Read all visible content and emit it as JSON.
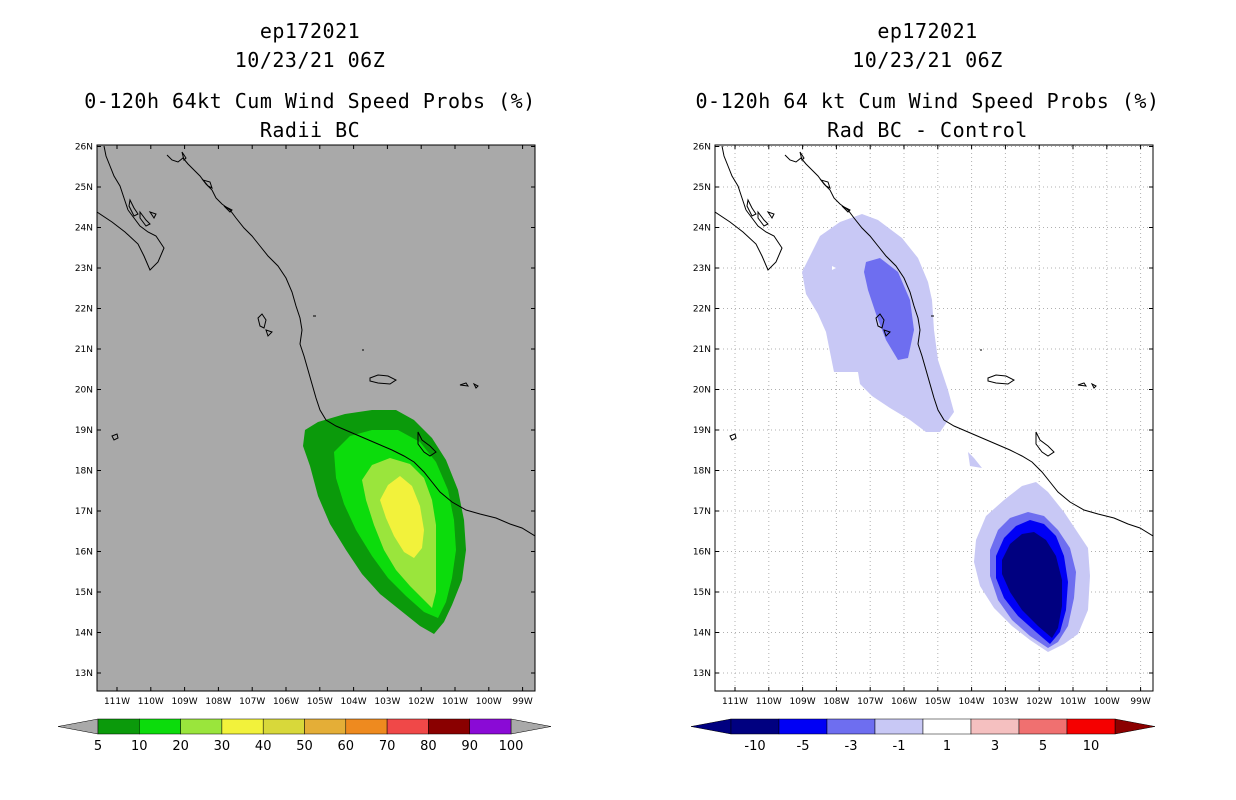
{
  "left": {
    "storm_id": "ep172021",
    "datetime": "10/23/21 06Z",
    "product": "0-120h 64kt Cum Wind Speed Probs (%)",
    "subtitle": "Radii BC",
    "background": "#a9a9a9",
    "colorbar": {
      "labels": [
        "5",
        "10",
        "20",
        "30",
        "40",
        "50",
        "60",
        "70",
        "80",
        "90",
        "100"
      ],
      "colors": [
        "#0b9a0b",
        "#0cdc0c",
        "#9ae53c",
        "#f2f23b",
        "#d8d83a",
        "#e4ae37",
        "#ee8a1f",
        "#f04848",
        "#8a0000",
        "#8a0ad6"
      ]
    }
  },
  "right": {
    "storm_id": "ep172021",
    "datetime": "10/23/21 06Z",
    "product": "0-120h 64 kt Cum Wind Speed Probs (%)",
    "subtitle": "Rad BC - Control",
    "background": "#ffffff",
    "colorbar": {
      "labels": [
        "-10",
        "-5",
        "-3",
        "-1",
        "1",
        "3",
        "5",
        "10"
      ],
      "colors": [
        "#000080",
        "#0000f5",
        "#6e6ef0",
        "#c8c8f5",
        "#ffffff",
        "#f5c0c0",
        "#f07070",
        "#f50000"
      ]
    }
  },
  "axes": {
    "lat_labels": [
      "26N",
      "25N",
      "24N",
      "23N",
      "22N",
      "21N",
      "20N",
      "19N",
      "18N",
      "17N",
      "16N",
      "15N",
      "14N",
      "13N"
    ],
    "lon_labels": [
      "111W",
      "110W",
      "109W",
      "108W",
      "107W",
      "106W",
      "105W",
      "104W",
      "103W",
      "102W",
      "101W",
      "100W",
      "99W"
    ]
  },
  "chart_data": [
    {
      "type": "heatmap",
      "title": "0-120h 64kt Cum Wind Speed Probs (%) - Radii BC",
      "region": {
        "lon_range": [
          -111.5,
          -98.5
        ],
        "lat_range": [
          12.5,
          26
        ]
      },
      "levels": [
        5,
        10,
        20,
        30,
        40,
        50,
        60,
        70,
        80,
        90,
        100
      ],
      "max_value_approx": 35,
      "max_location_approx": {
        "lon": -102.2,
        "lat": 16.8
      }
    },
    {
      "type": "heatmap",
      "title": "0-120h 64 kt Cum Wind Speed Probs (%) - Rad BC - Control",
      "region": {
        "lon_range": [
          -111.5,
          -98.5
        ],
        "lat_range": [
          12.5,
          26
        ]
      },
      "levels": [
        -10,
        -5,
        -3,
        -1,
        1,
        3,
        5,
        10
      ],
      "min_value_approx": -10,
      "min_location_approx": {
        "lon": -102.0,
        "lat": 15.2
      }
    }
  ]
}
